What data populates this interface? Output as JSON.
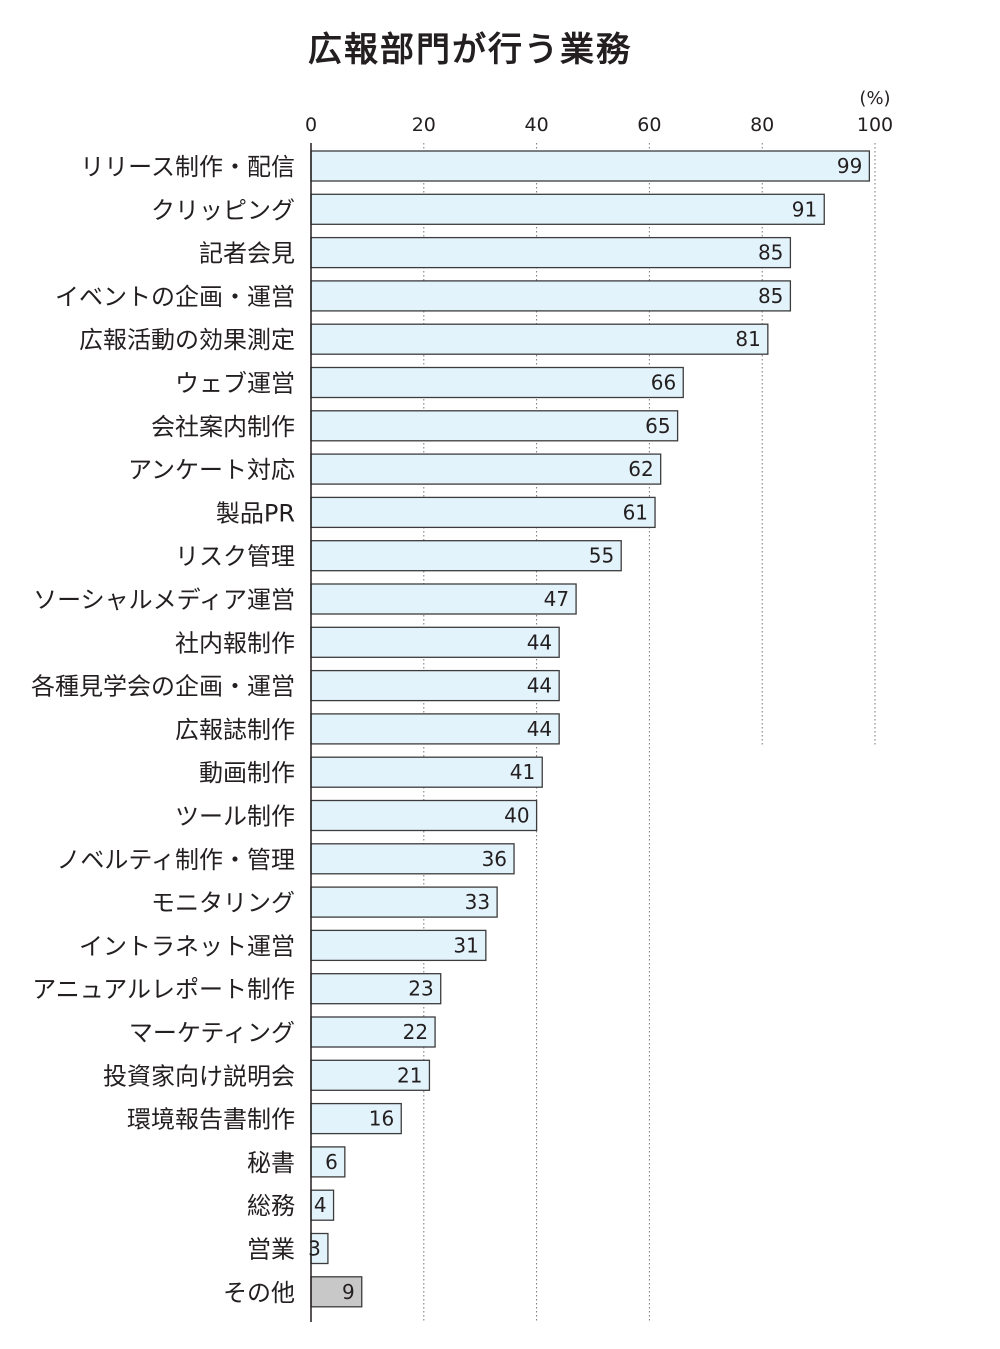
{
  "chart_data": {
    "type": "bar",
    "orientation": "horizontal",
    "title": "広報部門が行う業務",
    "unit": "(%)",
    "xlim": [
      0,
      100
    ],
    "ticks": [
      0,
      20,
      40,
      60,
      80,
      100
    ],
    "grid": true,
    "categories": [
      "リリース制作・配信",
      "クリッピング",
      "記者会見",
      "イベントの企画・運営",
      "広報活動の効果測定",
      "ウェブ運営",
      "会社案内制作",
      "アンケート対応",
      "製品PR",
      "リスク管理",
      "ソーシャルメディア運営",
      "社内報制作",
      "各種見学会の企画・運営",
      "広報誌制作",
      "動画制作",
      "ツール制作",
      "ノベルティ制作・管理",
      "モニタリング",
      "イントラネット運営",
      "アニュアルレポート制作",
      "マーケティング",
      "投資家向け説明会",
      "環境報告書制作",
      "秘書",
      "総務",
      "営業",
      "その他"
    ],
    "values": [
      99,
      91,
      85,
      85,
      81,
      66,
      65,
      62,
      61,
      55,
      47,
      44,
      44,
      44,
      41,
      40,
      36,
      33,
      31,
      23,
      22,
      21,
      16,
      6,
      4,
      3,
      9
    ],
    "colors": {
      "bar": "#e3f3fb",
      "bar_other": "#c8c8c8",
      "bar_stroke": "#3c3c3c",
      "grid": "#777777"
    }
  }
}
